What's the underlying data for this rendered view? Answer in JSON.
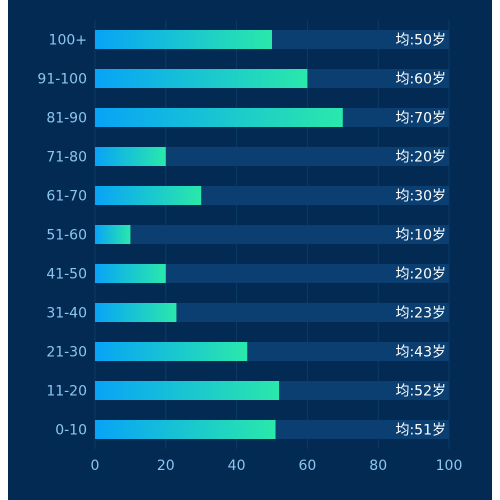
{
  "colors": {
    "background": "#022a53",
    "track": "#0b3f71",
    "grid": "#0d3b66",
    "bar_gradient_start": "#08a3f7",
    "bar_gradient_end": "#2ae8ab",
    "axis_text": "#8dc6f0",
    "label_text": "#ffffff"
  },
  "chart_data": {
    "type": "bar",
    "orientation": "horizontal",
    "categories": [
      "0-10",
      "11-20",
      "21-30",
      "31-40",
      "41-50",
      "51-60",
      "61-70",
      "71-80",
      "81-90",
      "91-100",
      "100+"
    ],
    "values": [
      51,
      52,
      43,
      23,
      20,
      10,
      30,
      20,
      70,
      60,
      50
    ],
    "value_labels": [
      "均:51岁",
      "均:52岁",
      "均:43岁",
      "均:23岁",
      "均:20岁",
      "均:10岁",
      "均:30岁",
      "均:20岁",
      "均:70岁",
      "均:60岁",
      "均:50岁"
    ],
    "xlim": [
      0,
      100
    ],
    "x_ticks": [
      "0",
      "20",
      "40",
      "60",
      "80",
      "100"
    ],
    "grid": true,
    "title": "",
    "xlabel": "",
    "ylabel": ""
  }
}
